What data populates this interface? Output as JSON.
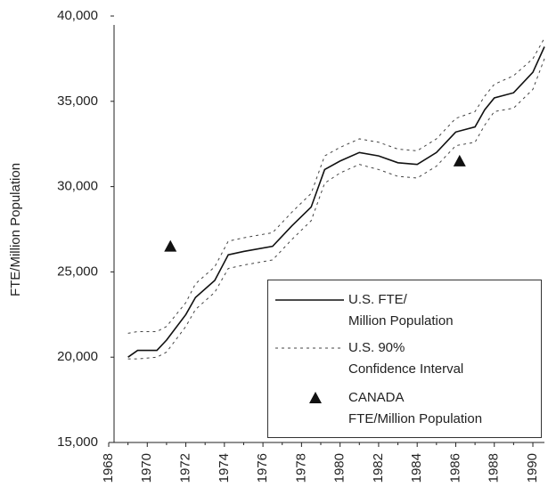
{
  "chart_data": {
    "type": "line",
    "y_label": "FTE/Million Population",
    "xlim": [
      1968,
      1990.6
    ],
    "xticks": [
      1968,
      1970,
      1972,
      1974,
      1976,
      1978,
      1980,
      1982,
      1984,
      1986,
      1988,
      1990
    ],
    "xminor": [
      1969,
      1971,
      1973,
      1975,
      1977,
      1979,
      1981,
      1983,
      1985,
      1987,
      1989
    ],
    "ylim": [
      15000,
      40000
    ],
    "yticks": [
      {
        "value": 15000,
        "label": "15,000"
      },
      {
        "value": 20000,
        "label": "20,000"
      },
      {
        "value": 25000,
        "label": "25,000"
      },
      {
        "value": 30000,
        "label": "30,000"
      },
      {
        "value": 35000,
        "label": "35,000"
      },
      {
        "value": 40000,
        "label": "40,000"
      }
    ],
    "x": [
      1969,
      1969.5,
      1970.5,
      1971,
      1972,
      1972.5,
      1973.5,
      1974.2,
      1975,
      1976.5,
      1977.5,
      1978.5,
      1979.2,
      1980,
      1981,
      1982,
      1983,
      1984,
      1985,
      1986,
      1987,
      1987.5,
      1988,
      1989,
      1990,
      1990.6
    ],
    "series": [
      {
        "name": "U.S. FTE/\nMillion Population",
        "color": "#111111",
        "style": "solid",
        "values": [
          20000,
          20400,
          20400,
          21000,
          22500,
          23500,
          24500,
          26000,
          26200,
          26500,
          27700,
          28800,
          31000,
          31500,
          32000,
          31800,
          31400,
          31300,
          32000,
          33200,
          33500,
          34500,
          35200,
          35500,
          36700,
          38200
        ]
      },
      {
        "name": "U.S. 90%\nConfidence Interval",
        "color": "#444444",
        "style": "dashed",
        "upper": [
          21400,
          21500,
          21500,
          21800,
          23200,
          24300,
          25300,
          26800,
          27000,
          27300,
          28500,
          29600,
          31800,
          32300,
          32800,
          32600,
          32200,
          32100,
          32800,
          34000,
          34400,
          35300,
          36000,
          36500,
          37500,
          38700
        ],
        "lower": [
          19900,
          19900,
          20000,
          20300,
          21800,
          22800,
          23800,
          25200,
          25400,
          25700,
          26900,
          28000,
          30200,
          30800,
          31300,
          31000,
          30600,
          30500,
          31200,
          32400,
          32600,
          33600,
          34400,
          34600,
          35700,
          37500
        ]
      },
      {
        "name": "CANADA\nFTE/Million Population",
        "color": "#111111",
        "marker": "triangle",
        "x": [
          1971.2,
          1986.2
        ],
        "values": [
          26500,
          31500
        ]
      }
    ],
    "legend": "lower right"
  }
}
